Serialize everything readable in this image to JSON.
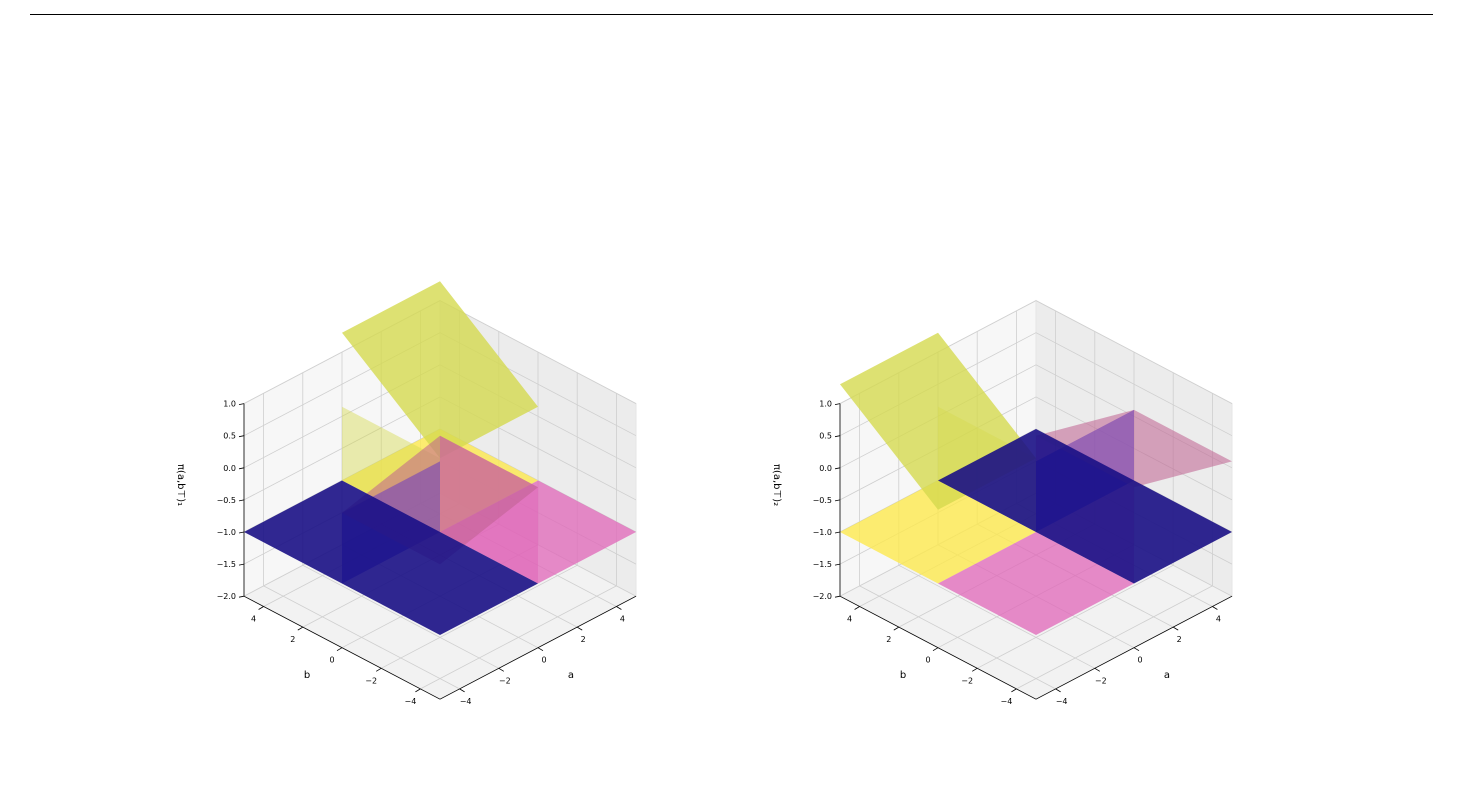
{
  "chart_data": [
    {
      "type": "surface3d",
      "title": "",
      "xlabel": "a",
      "ylabel": "b",
      "zlabel": "π(a,b⊤)₁",
      "xlim": [
        -5,
        5
      ],
      "ylim": [
        -5,
        5
      ],
      "zlim": [
        -2,
        1
      ],
      "xticks": [
        "−4",
        "−2",
        "0",
        "2",
        "4"
      ],
      "yticks": [
        "−4",
        "−2",
        "0",
        "2",
        "4"
      ],
      "zticks": [
        "−2.0",
        "−1.5",
        "−1.0",
        "−0.5",
        "0.0",
        "0.5",
        "1.0"
      ],
      "grid": true,
      "regions": [
        {
          "a": [
            -5,
            0
          ],
          "b": [
            -5,
            5
          ],
          "z": -1.0,
          "color": "#1a0f85"
        },
        {
          "a": [
            0,
            5
          ],
          "b": [
            -5,
            0
          ],
          "z": -1.0,
          "color": "#e066b8"
        },
        {
          "a": [
            0,
            5
          ],
          "b": [
            0,
            5
          ],
          "z": -1.0,
          "color": "#fde94e"
        },
        {
          "a": [
            0,
            5
          ],
          "b": [
            0,
            5
          ],
          "z_plane": "rising",
          "color": "#d4d94f"
        }
      ],
      "walls": [
        {
          "a": 0,
          "b": [
            -5,
            0
          ],
          "z": [
            -1.0,
            0.5
          ],
          "color": "#e066b8"
        },
        {
          "a": 0,
          "b": [
            0,
            5
          ],
          "z": [
            -1.0,
            1.0
          ],
          "color": "#d4d94f"
        },
        {
          "a": [
            -5,
            0
          ],
          "b": 0,
          "z": [
            -1.0,
            0.0
          ],
          "color": "#3333dd"
        }
      ]
    },
    {
      "type": "surface3d",
      "title": "",
      "xlabel": "a",
      "ylabel": "b",
      "zlabel": "π(a,b⊤)₂",
      "xlim": [
        -5,
        5
      ],
      "ylim": [
        -5,
        5
      ],
      "zlim": [
        -2,
        1
      ],
      "xticks": [
        "−4",
        "−2",
        "0",
        "2",
        "4"
      ],
      "yticks": [
        "−4",
        "−2",
        "0",
        "2",
        "4"
      ],
      "zticks": [
        "−2.0",
        "−1.5",
        "−1.0",
        "−0.5",
        "0.0",
        "0.5",
        "1.0"
      ],
      "grid": true,
      "regions": [
        {
          "a": [
            0,
            5
          ],
          "b": [
            -5,
            5
          ],
          "z": -1.0,
          "color": "#1a0f85"
        },
        {
          "a": [
            -5,
            0
          ],
          "b": [
            -5,
            0
          ],
          "z": -1.0,
          "color": "#e066b8"
        },
        {
          "a": [
            -5,
            0
          ],
          "b": [
            0,
            5
          ],
          "z": -1.0,
          "color": "#fde94e"
        },
        {
          "a": [
            -5,
            0
          ],
          "b": [
            0,
            5
          ],
          "z_plane": "rising",
          "color": "#d4d94f"
        }
      ],
      "walls": [
        {
          "a": 0,
          "b": [
            -5,
            0
          ],
          "z": [
            -1.0,
            0.5
          ],
          "color": "#e066b8"
        },
        {
          "a": 0,
          "b": [
            0,
            5
          ],
          "z": [
            -1.0,
            1.0
          ],
          "color": "#d4d94f"
        },
        {
          "a": [
            0,
            5
          ],
          "b": 0,
          "z": [
            -1.0,
            0.0
          ],
          "color": "#3333dd"
        }
      ]
    }
  ]
}
